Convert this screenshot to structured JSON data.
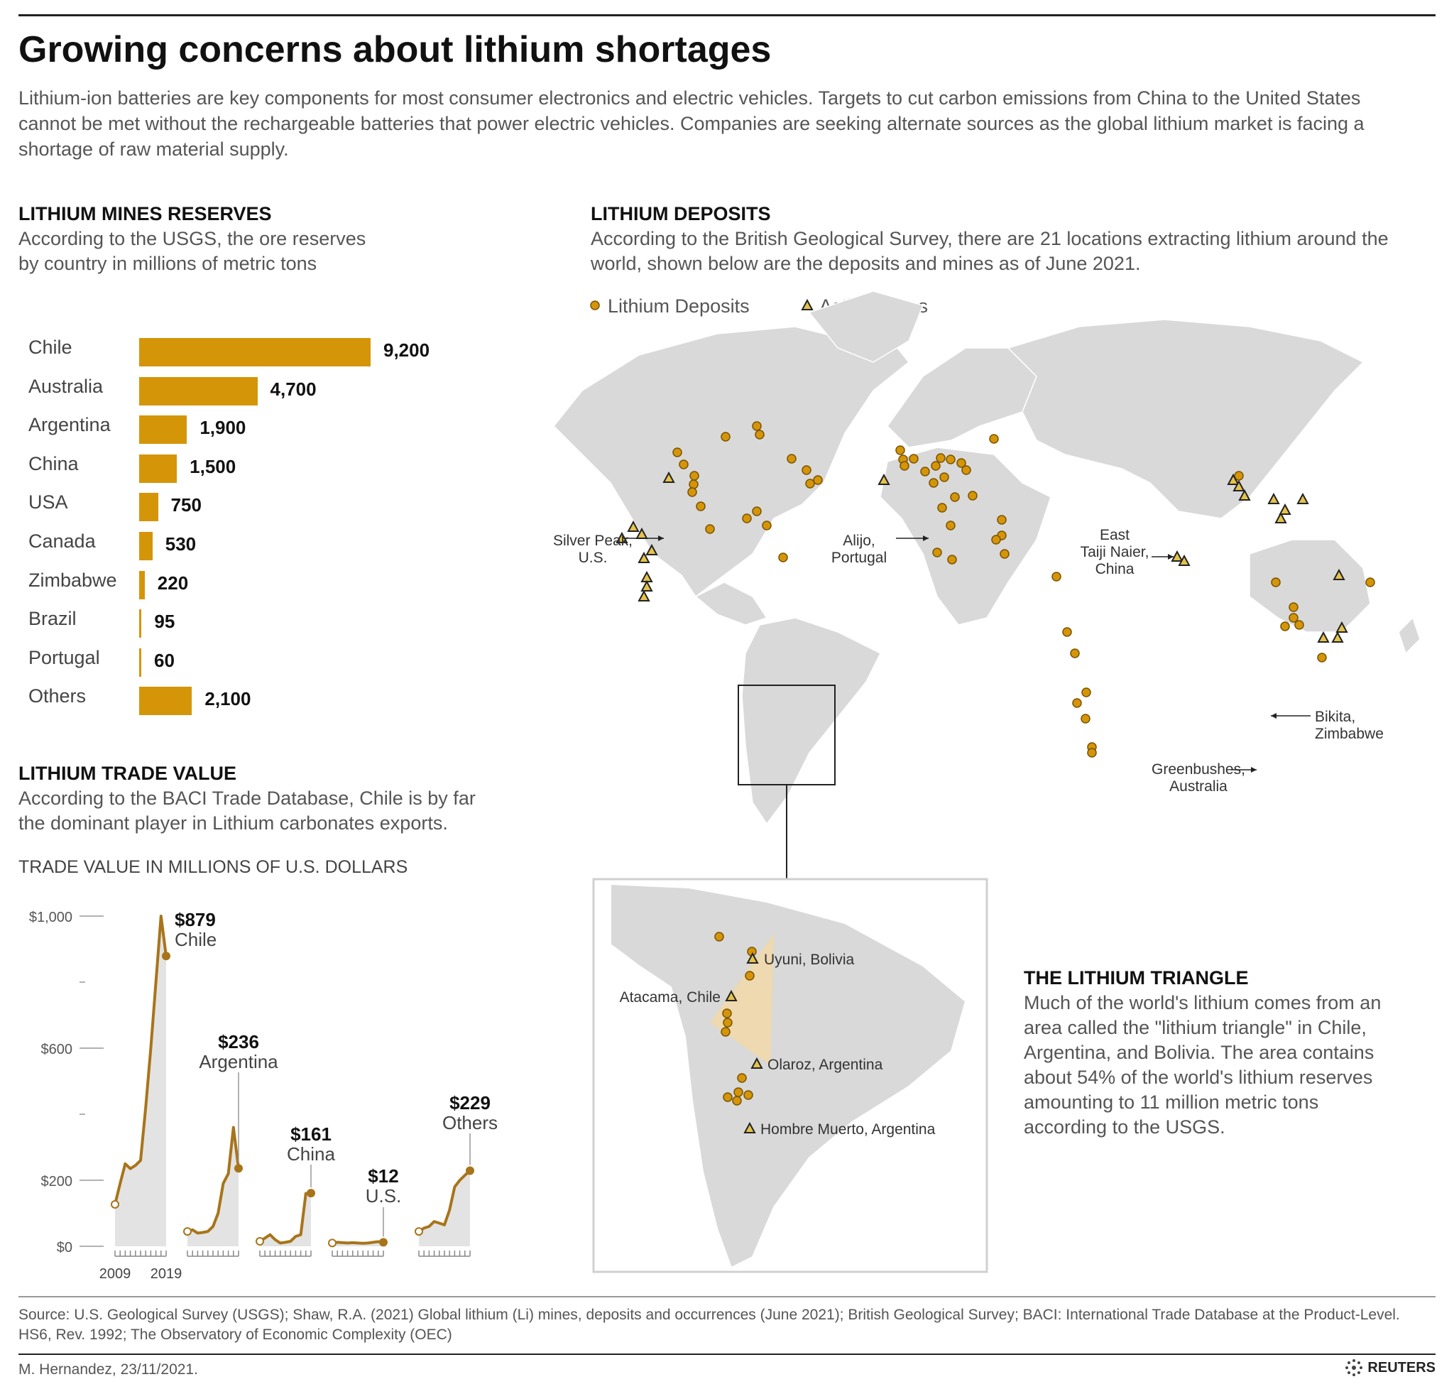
{
  "title": "Growing concerns about lithium shortages",
  "intro": "Lithium-ion batteries are key components for most consumer electronics and electric vehicles. Targets to cut carbon emissions from China to the United States cannot be met without the rechargeable batteries that power electric vehicles. Companies are seeking alternate sources as the global lithium market is facing a shortage of raw material supply.",
  "colors": {
    "accent": "#d49508",
    "line": "#a8741a",
    "land": "#d9d9d9",
    "triangle": "#f1d8a8"
  },
  "reserves": {
    "heading": "LITHIUM MINES RESERVES",
    "subtitle": "According to the USGS, the ore reserves by country in millions of metric tons",
    "chart_data": {
      "type": "bar",
      "categories": [
        "Chile",
        "Australia",
        "Argentina",
        "China",
        "USA",
        "Canada",
        "Zimbabwe",
        "Brazil",
        "Portugal",
        "Others"
      ],
      "values": [
        9200,
        4700,
        1900,
        1500,
        750,
        530,
        220,
        95,
        60,
        2100
      ],
      "value_labels": [
        "9,200",
        "4,700",
        "1,900",
        "1,500",
        "750",
        "530",
        "220",
        "95",
        "60",
        "2,100"
      ]
    }
  },
  "trade": {
    "heading": "LITHIUM TRADE VALUE",
    "subtitle": "According to the BACI Trade Database, Chile is by far the dominant player in Lithium carbonates exports.",
    "unit": "TRADE VALUE IN MILLIONS OF U.S. DOLLARS",
    "chart_data": {
      "type": "line",
      "x": [
        2009,
        2010,
        2011,
        2012,
        2013,
        2014,
        2015,
        2016,
        2017,
        2018,
        2019
      ],
      "y_ticks": [
        "$1,000",
        "$600",
        "$200",
        "$0"
      ],
      "x_labels": [
        "2009",
        "2019"
      ],
      "series": [
        {
          "name": "Chile",
          "label": "$879",
          "values": [
            127,
            190,
            250,
            235,
            245,
            260,
            420,
            600,
            800,
            1000,
            879
          ]
        },
        {
          "name": "Argentina",
          "label": "$236",
          "values": [
            45,
            50,
            40,
            42,
            45,
            60,
            100,
            190,
            220,
            360,
            236
          ]
        },
        {
          "name": "China",
          "label": "$161",
          "values": [
            15,
            25,
            35,
            20,
            10,
            12,
            15,
            30,
            35,
            160,
            161
          ]
        },
        {
          "name": "U.S.",
          "label": "$12",
          "values": [
            10,
            12,
            11,
            10,
            11,
            10,
            9,
            10,
            12,
            14,
            12
          ]
        },
        {
          "name": "Others",
          "label": "$229",
          "values": [
            45,
            55,
            60,
            75,
            70,
            65,
            110,
            180,
            200,
            215,
            229
          ]
        }
      ]
    }
  },
  "deposits": {
    "heading": "LITHIUM DEPOSITS",
    "subtitle": "According to the British Geological Survey, there are 21 locations extracting lithium around the world, shown below are the deposits and mines as of June 2021.",
    "legend": {
      "deposits": "Lithium Deposits",
      "mines": "Active mines"
    },
    "callouts": {
      "silver_peak": [
        "Silver Peak,",
        "U.S."
      ],
      "alijo": [
        "Alijo,",
        "Portugal"
      ],
      "east_taiji": [
        "East",
        "Taiji Naier,",
        "China"
      ],
      "bikita": [
        "Bikita,",
        "Zimbabwe"
      ],
      "greenbushes": [
        "Greenbushes,",
        "Australia"
      ]
    },
    "inset_labels": {
      "uyuni": "Uyuni, Bolivia",
      "atacama": "Atacama, Chile",
      "olaroz": "Olaroz, Argentina",
      "hombre": "Hombre Muerto, Argentina"
    }
  },
  "triangle": {
    "heading": "THE LITHIUM TRIANGLE",
    "text": "Much of the world's lithium comes from an area called the \"lithium triangle\" in Chile, Argentina, and Bolivia. The area contains about 54% of the world's lithium reserves amounting to 11 million metric tons according to the USGS."
  },
  "source": "Source: U.S. Geological Survey (USGS); Shaw, R.A. (2021) Global lithium (Li) mines, deposits and occurrences (June 2021); British Geological Survey; BACI: International Trade Database at the Product-Level. HS6, Rev. 1992; The Observatory of Economic Complexity (OEC)",
  "byline": "M. Hernandez, 23/11/2021.",
  "logo": "REUTERS"
}
